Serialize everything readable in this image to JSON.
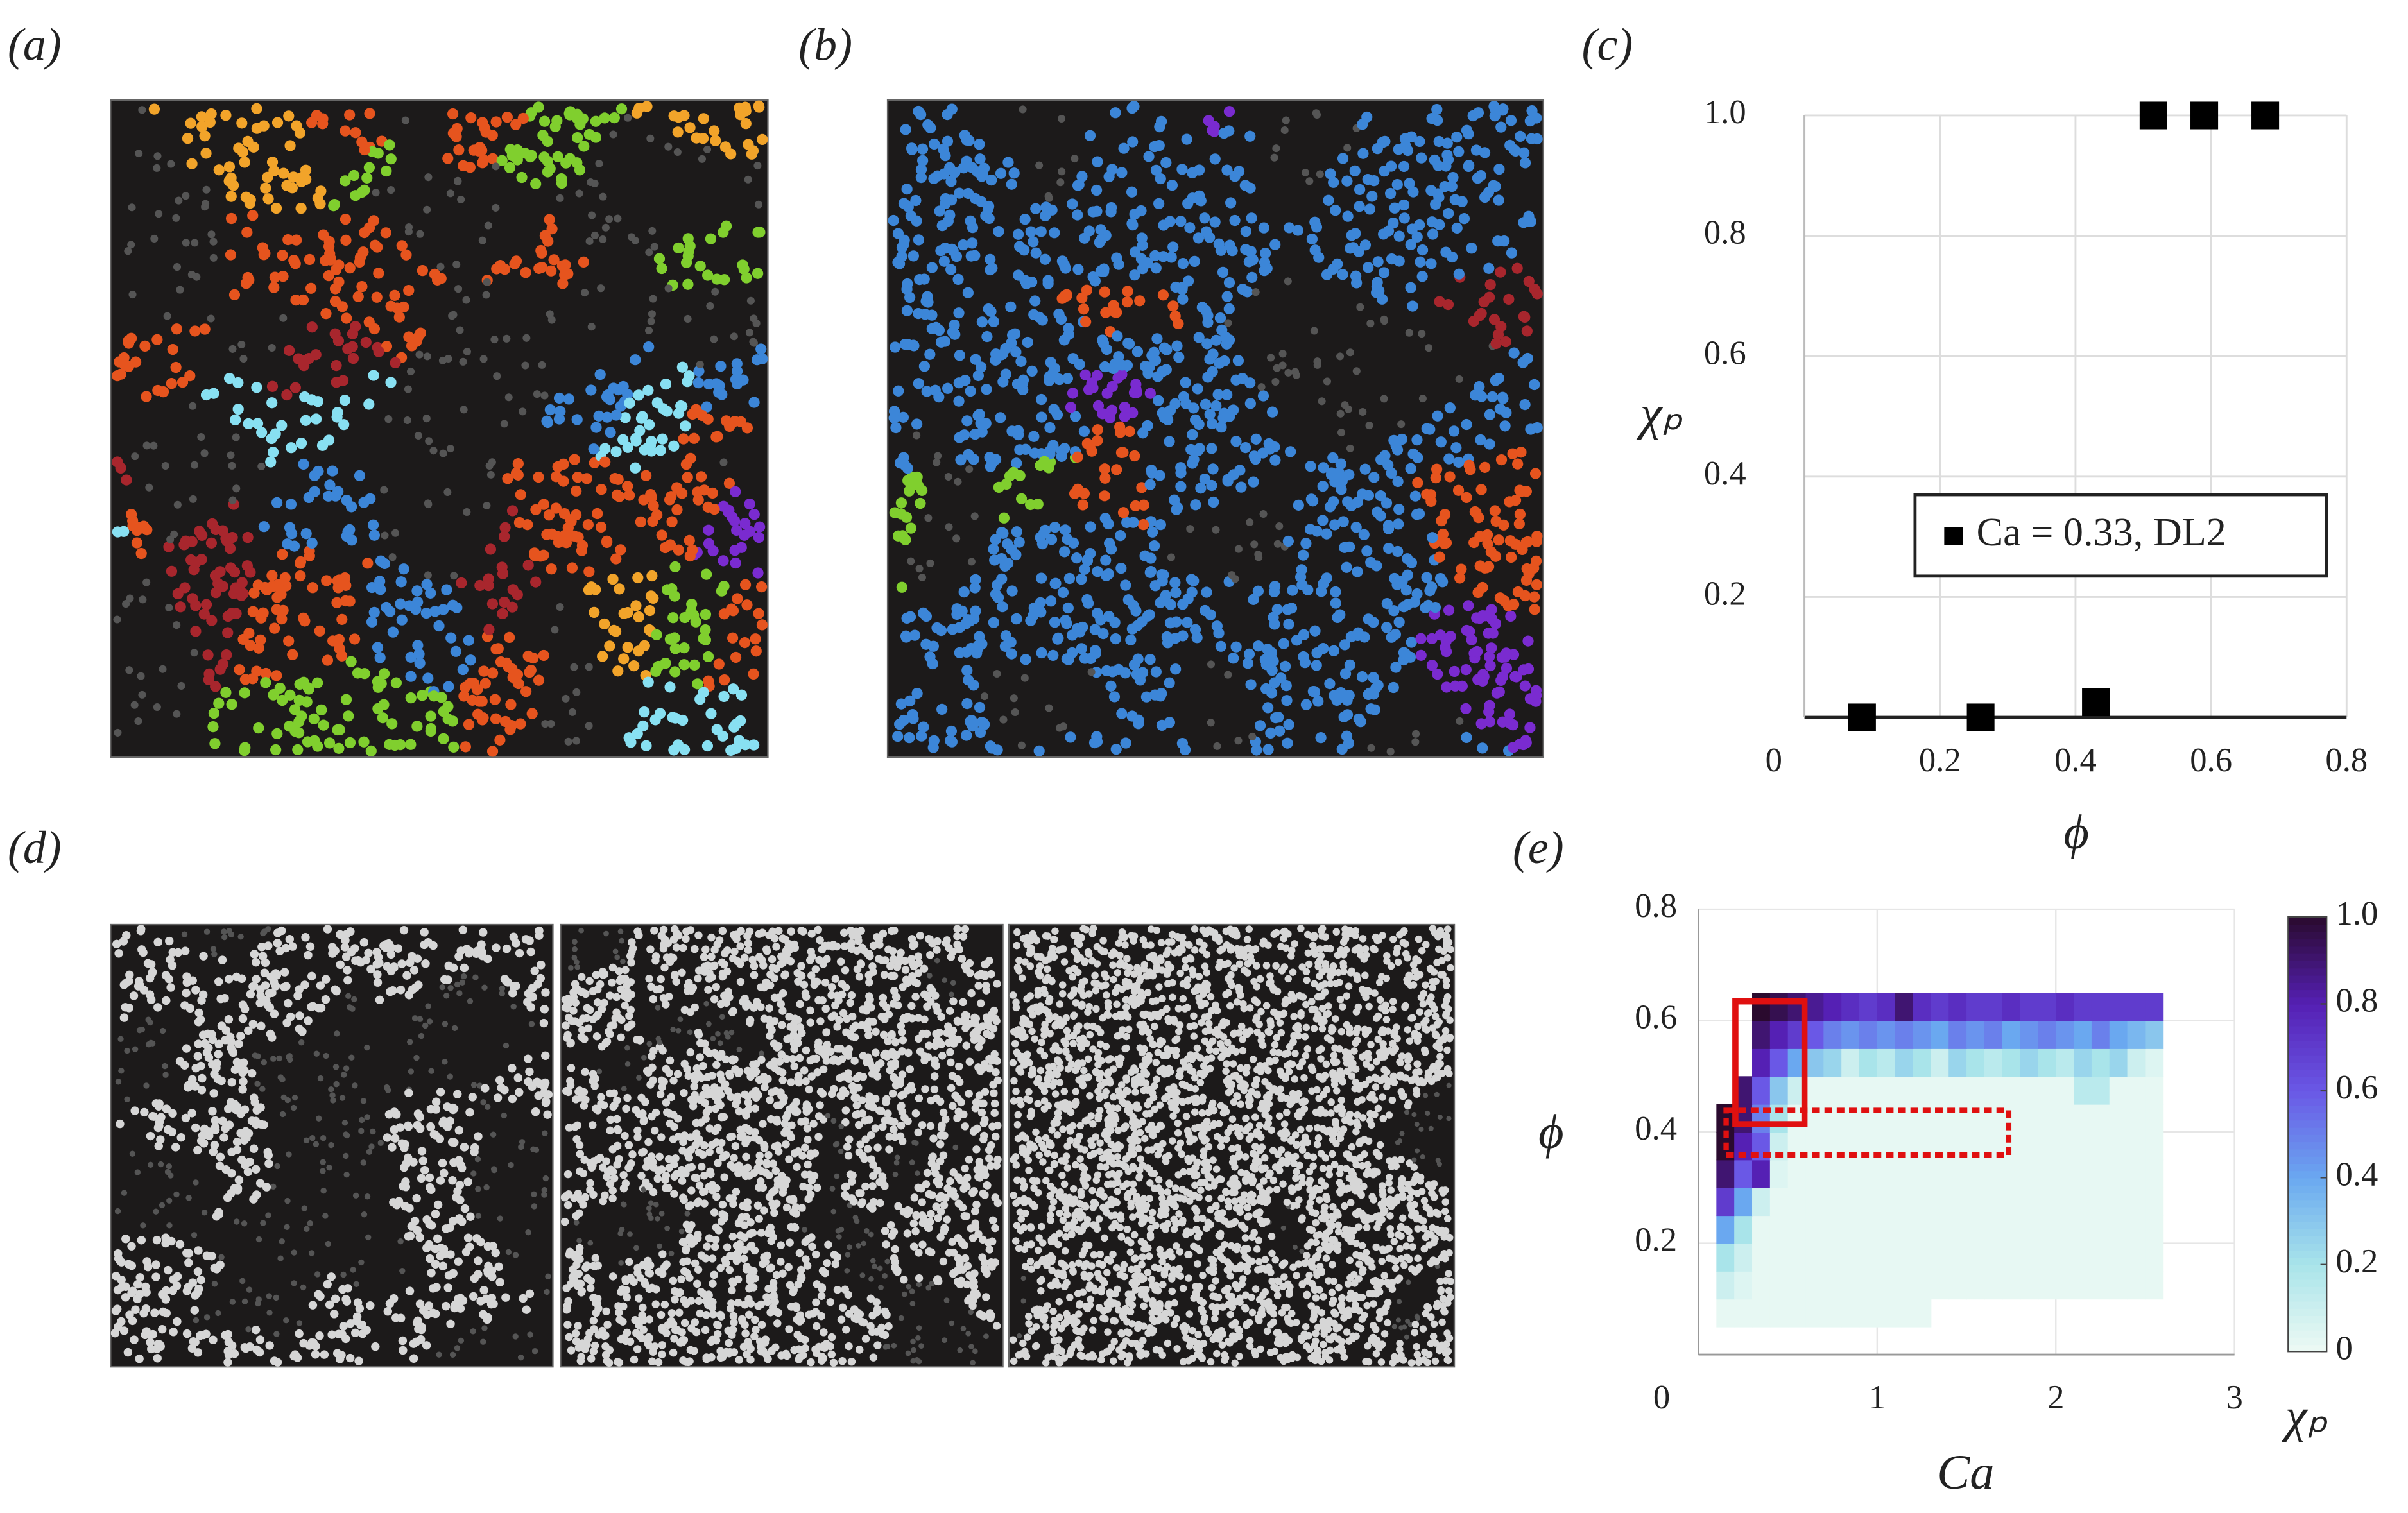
{
  "panel_labels": [
    "(a)",
    "(b)",
    "(c)",
    "(d)",
    "(e)"
  ],
  "chart_data": [
    {
      "type": "scatter",
      "xlabel": "ϕ",
      "ylabel": "χₚ",
      "x": [
        0.085,
        0.26,
        0.43,
        0.515,
        0.59,
        0.68
      ],
      "series": [
        {
          "name": "Ca = 0.33, DL2",
          "color": "#000000",
          "values": [
            0,
            0,
            0.025,
            1,
            1,
            1
          ]
        }
      ],
      "xlim": [
        0,
        0.8
      ],
      "ylim": [
        0,
        1
      ],
      "xticks": [
        0,
        0.2,
        0.4,
        0.6,
        0.8
      ],
      "yticks": [
        0.2,
        0.4,
        0.6,
        0.8,
        {
          "value": 1,
          "label": "1.0"
        }
      ],
      "grid": true
    },
    {
      "type": "heatmap",
      "xlabel": "Ca",
      "ylabel": "ϕ",
      "colorbar_label": "χₚ",
      "xbins": [
        0.1,
        0.2,
        0.3,
        0.4,
        0.5,
        0.6,
        0.7,
        0.8,
        0.9,
        1.0,
        1.1,
        1.2,
        1.3,
        1.4,
        1.5,
        1.6,
        1.7,
        1.8,
        1.9,
        2.0,
        2.1,
        2.2,
        2.3,
        2.4,
        2.5,
        2.6
      ],
      "ybins": [
        0.05,
        0.1,
        0.15,
        0.2,
        0.25,
        0.3,
        0.35,
        0.4,
        0.45,
        0.5,
        0.55,
        0.6,
        0.65
      ],
      "values": [
        [
          0.02,
          0.02,
          0.02,
          0.02,
          0.02,
          0.02,
          0.02,
          0.02,
          0.02,
          0.02,
          0.02,
          0.02,
          null,
          null,
          null,
          null,
          null,
          null,
          null,
          null,
          null,
          null,
          null,
          null,
          null
        ],
        [
          0.1,
          0.05,
          0.02,
          0.02,
          0.02,
          0.02,
          0.02,
          0.02,
          0.02,
          0.02,
          0.02,
          0.02,
          0.02,
          0.02,
          0.02,
          0.02,
          0.02,
          0.02,
          0.02,
          0.02,
          0.02,
          0.02,
          0.02,
          0.02,
          0.02
        ],
        [
          0.2,
          0.1,
          0.02,
          0.02,
          0.02,
          0.02,
          0.02,
          0.02,
          0.02,
          0.02,
          0.02,
          0.02,
          0.02,
          0.02,
          0.02,
          0.02,
          0.02,
          0.02,
          0.02,
          0.02,
          0.02,
          0.02,
          0.02,
          0.02,
          0.02
        ],
        [
          0.4,
          0.2,
          0.02,
          0.02,
          0.02,
          0.02,
          0.02,
          0.02,
          0.02,
          0.02,
          0.02,
          0.02,
          0.02,
          0.02,
          0.02,
          0.02,
          0.02,
          0.02,
          0.02,
          0.02,
          0.02,
          0.02,
          0.02,
          0.02,
          0.02
        ],
        [
          0.7,
          0.4,
          0.1,
          0.02,
          0.02,
          0.02,
          0.02,
          0.02,
          0.02,
          0.02,
          0.02,
          0.02,
          0.02,
          0.02,
          0.02,
          0.02,
          0.02,
          0.02,
          0.02,
          0.02,
          0.02,
          0.02,
          0.02,
          0.02,
          0.02
        ],
        [
          0.9,
          0.6,
          0.8,
          0.05,
          0.02,
          0.02,
          0.02,
          0.02,
          0.02,
          0.02,
          0.02,
          0.02,
          0.02,
          0.02,
          0.02,
          0.02,
          0.02,
          0.02,
          0.02,
          0.02,
          0.02,
          0.02,
          0.02,
          0.02,
          0.02
        ],
        [
          1,
          0.8,
          0.6,
          0.1,
          0.02,
          0.02,
          0.02,
          0.02,
          0.02,
          0.02,
          0.02,
          0.02,
          0.02,
          0.02,
          0.02,
          0.02,
          0.02,
          0.02,
          0.02,
          0.02,
          0.02,
          0.02,
          0.02,
          0.02,
          0.02
        ],
        [
          1,
          0.9,
          0.5,
          0.2,
          0.02,
          0.02,
          0.02,
          0.02,
          0.02,
          0.02,
          0.02,
          0.02,
          0.02,
          0.02,
          0.02,
          0.02,
          0.02,
          0.02,
          0.02,
          0.02,
          0.02,
          0.02,
          0.02,
          0.02,
          0.02
        ],
        [
          null,
          0.9,
          0.6,
          0.3,
          0.1,
          0.02,
          0.02,
          0.02,
          0.02,
          0.02,
          0.02,
          0.02,
          0.02,
          0.02,
          0.02,
          0.02,
          0.02,
          0.02,
          0.02,
          0.02,
          0.15,
          0.15,
          0.02,
          0.02,
          0.02
        ],
        [
          null,
          null,
          0.8,
          0.6,
          0.4,
          0.3,
          0.25,
          0.1,
          0.2,
          0.15,
          0.25,
          0.2,
          0.1,
          0.25,
          0.2,
          0.15,
          0.2,
          0.25,
          0.2,
          0.15,
          0.25,
          0.2,
          0.25,
          0.1,
          0.05
        ],
        [
          null,
          null,
          0.9,
          0.8,
          0.7,
          0.6,
          0.5,
          0.45,
          0.5,
          0.45,
          0.5,
          0.45,
          0.4,
          0.5,
          0.45,
          0.5,
          0.4,
          0.45,
          0.5,
          0.45,
          0.4,
          0.5,
          0.4,
          0.35,
          0.3
        ],
        [
          null,
          null,
          1,
          0.95,
          0.9,
          0.85,
          0.8,
          0.75,
          0.7,
          0.75,
          0.9,
          0.75,
          0.7,
          0.75,
          0.7,
          0.7,
          0.75,
          0.7,
          0.7,
          0.75,
          0.7,
          0.7,
          0.7,
          0.7,
          0.7
        ]
      ],
      "clim": [
        0,
        1
      ],
      "colormap": [
        "#eefaf4",
        "#a9e4ea",
        "#6aa8f0",
        "#6a58e6",
        "#5520b4",
        "#2a0a2e"
      ],
      "xlim": [
        0,
        3
      ],
      "ylim": [
        0,
        0.8
      ],
      "xticks": [
        0,
        1,
        2,
        3
      ],
      "yticks": [
        0.2,
        0.4,
        0.6,
        0.8
      ],
      "cticks": [
        0,
        0.2,
        0.4,
        0.6,
        0.8,
        {
          "value": 1,
          "label": "1.0"
        }
      ],
      "grid": true
    }
  ]
}
